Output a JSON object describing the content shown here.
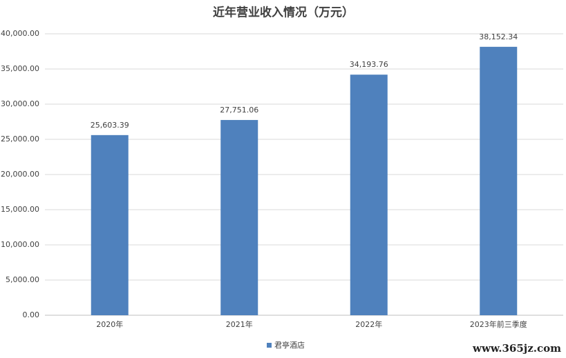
{
  "chart_data": {
    "type": "bar",
    "title": "近年营业收入情况（万元）",
    "categories": [
      "2020年",
      "2021年",
      "2022年",
      "2023年前三季度"
    ],
    "series": [
      {
        "name": "君亭酒店",
        "color": "#4f81bd",
        "values": [
          25603.39,
          27751.06,
          34193.76,
          38152.34
        ],
        "value_labels": [
          "25,603.39",
          "27,751.06",
          "34,193.76",
          "38,152.34"
        ]
      }
    ],
    "ylim": [
      0,
      40000
    ],
    "yticks": [
      {
        "value": 0,
        "label": "0.00"
      },
      {
        "value": 5000,
        "label": "5,000.00"
      },
      {
        "value": 10000,
        "label": "10,000.00"
      },
      {
        "value": 15000,
        "label": "15,000.00"
      },
      {
        "value": 20000,
        "label": "20,000.00"
      },
      {
        "value": 25000,
        "label": "25,000.00"
      },
      {
        "value": 30000,
        "label": "30,000.00"
      },
      {
        "value": 35000,
        "label": "35,000.00"
      },
      {
        "value": 40000,
        "label": "40,000.00"
      }
    ],
    "grid": true,
    "legend": "bottom",
    "watermark": "www.365jz.com"
  }
}
